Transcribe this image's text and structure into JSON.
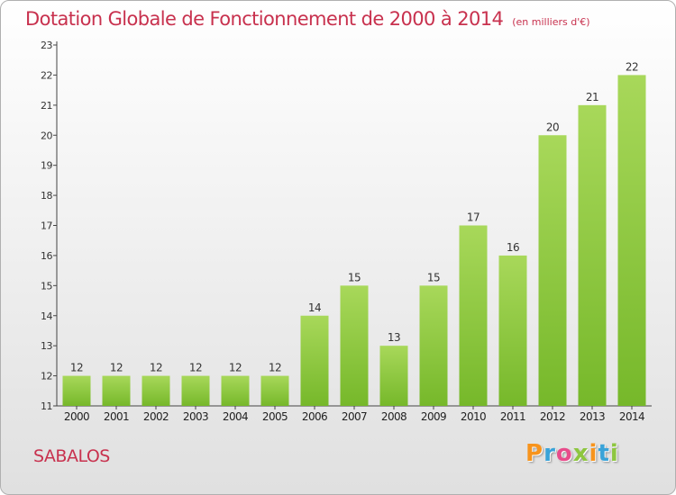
{
  "title": {
    "main": "Dotation Globale de Fonctionnement de 2000 à 2014",
    "unit": "(en milliers d'€)"
  },
  "commune": "SABALOS",
  "logo": {
    "letters": [
      "P",
      "r",
      "o",
      "x",
      "i",
      "t",
      "i"
    ],
    "colors": [
      "#f7941d",
      "#3aa3d8",
      "#e84c8b",
      "#8dc63f",
      "#f7941d",
      "#3aa3d8",
      "#8dc63f"
    ]
  },
  "chart_data": {
    "type": "bar",
    "categories": [
      "2000",
      "2001",
      "2002",
      "2003",
      "2004",
      "2005",
      "2006",
      "2007",
      "2008",
      "2009",
      "2010",
      "2011",
      "2012",
      "2013",
      "2014"
    ],
    "values": [
      12,
      12,
      12,
      12,
      12,
      12,
      14,
      15,
      13,
      15,
      17,
      16,
      20,
      21,
      22
    ],
    "ylim": [
      11,
      23
    ],
    "yticks": [
      11,
      12,
      13,
      14,
      15,
      16,
      17,
      18,
      19,
      20,
      21,
      22,
      23
    ],
    "grid": false,
    "bar_color": "#76b82a",
    "bar_color_light": "#a8d85a"
  }
}
